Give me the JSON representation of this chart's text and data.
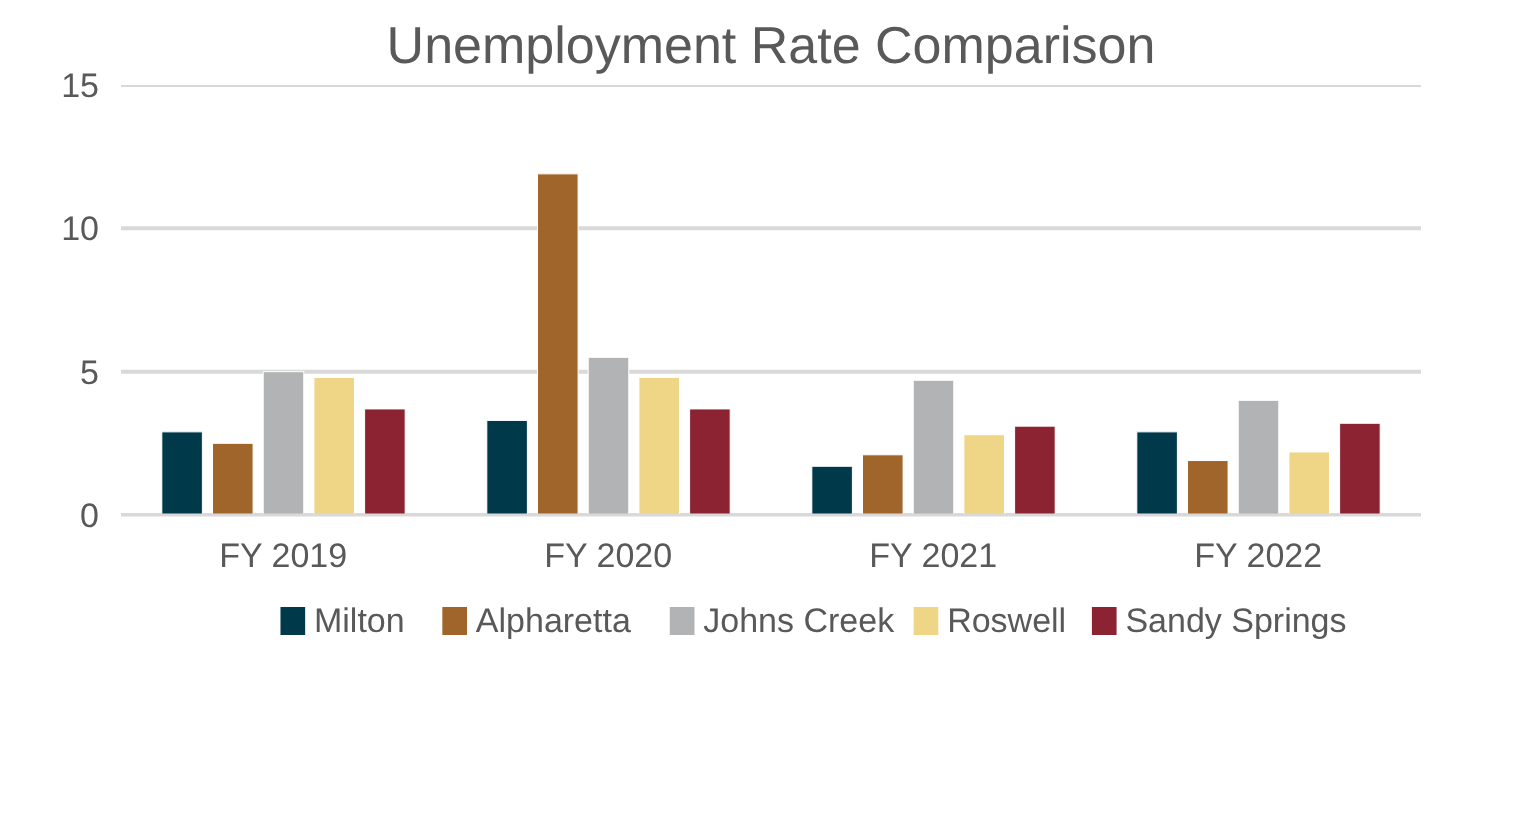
{
  "chart_data": {
    "type": "bar",
    "title": "Unemployment Rate Comparison",
    "categories": [
      "FY 2019",
      "FY 2020",
      "FY 2021",
      "FY 2022"
    ],
    "series": [
      {
        "name": "Milton",
        "color": "#003a4a",
        "values": [
          2.9,
          3.3,
          1.7,
          2.9
        ]
      },
      {
        "name": "Alpharetta",
        "color": "#a0652a",
        "values": [
          2.5,
          11.9,
          2.1,
          1.9
        ]
      },
      {
        "name": "Johns Creek",
        "color": "#b2b3b4",
        "values": [
          5.0,
          5.5,
          4.7,
          4.0
        ]
      },
      {
        "name": "Roswell",
        "color": "#efd586",
        "values": [
          4.8,
          4.8,
          2.8,
          2.2
        ]
      },
      {
        "name": "Sandy Springs",
        "color": "#8b2332",
        "values": [
          3.7,
          3.7,
          3.1,
          3.2
        ]
      }
    ],
    "ylim": [
      0,
      15
    ],
    "yticks": [
      0,
      5,
      10,
      15
    ],
    "grid": "y",
    "legend": "bottom"
  }
}
